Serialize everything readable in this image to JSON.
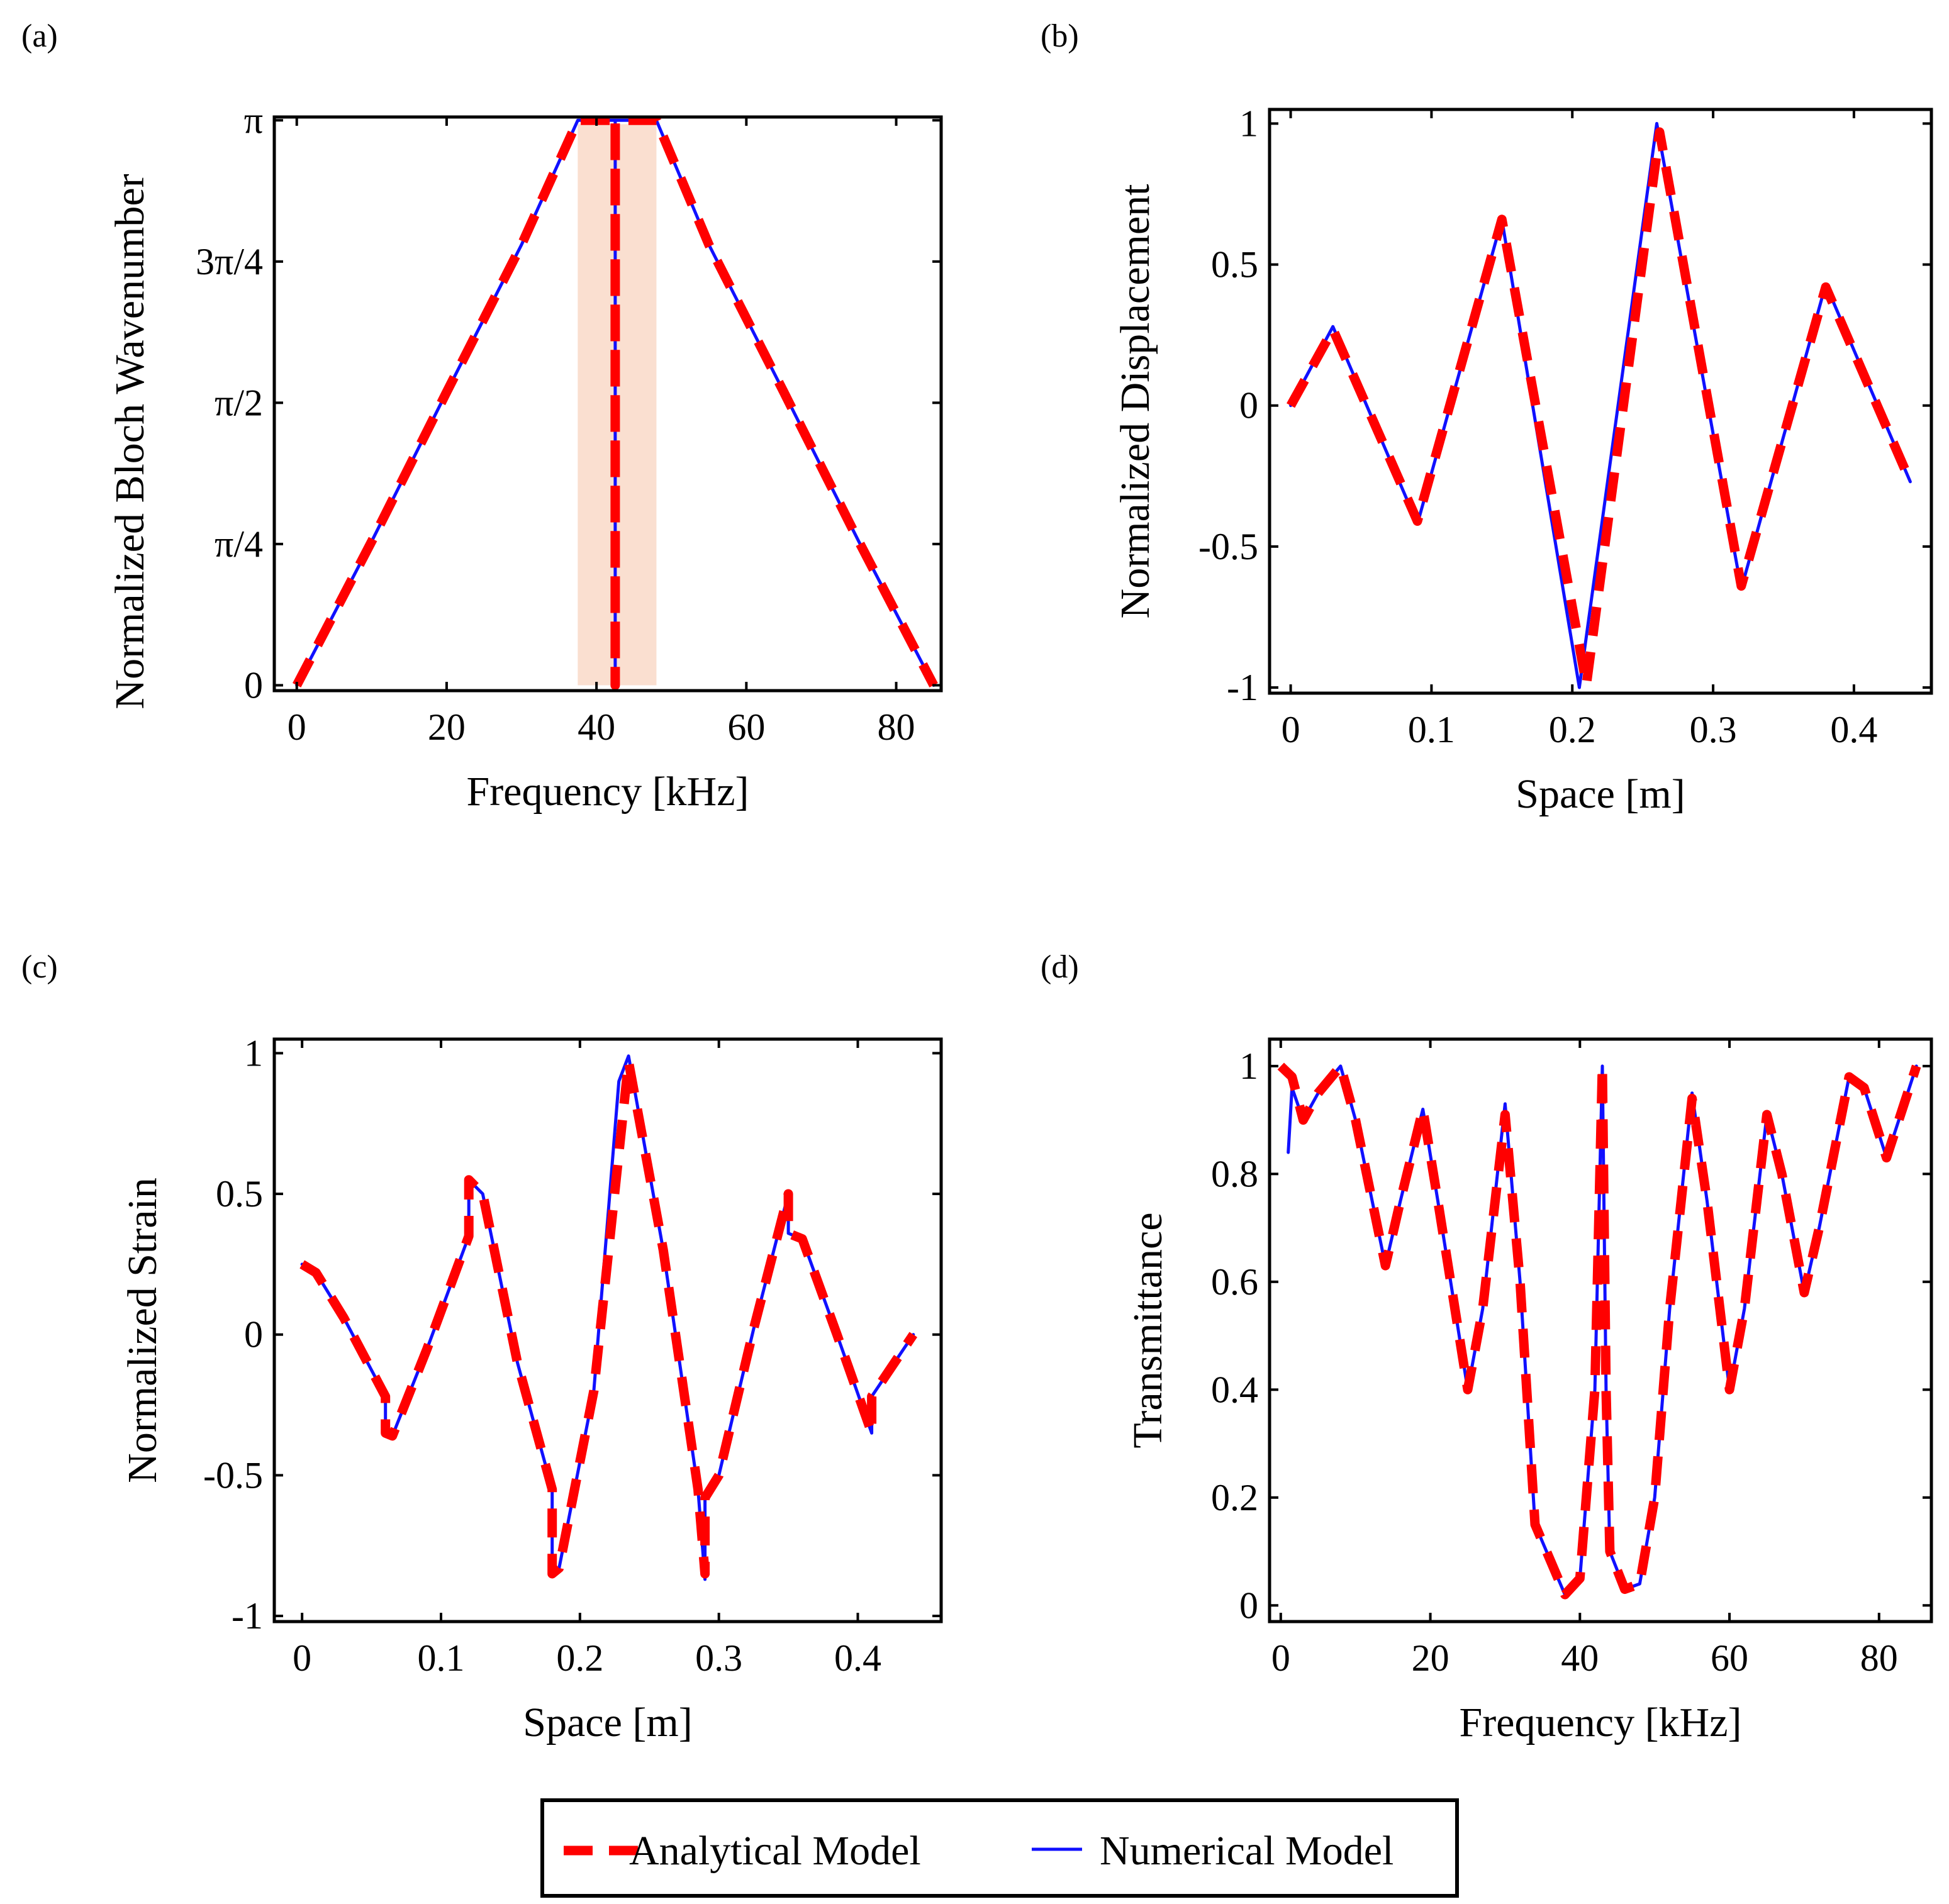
{
  "colors": {
    "analytical": "#ff0000",
    "numerical": "#1010ff",
    "bandgap": "#fadfd0",
    "axes": "#000000"
  },
  "legend": {
    "analytical_label": "Analytical Model",
    "numerical_label": "Numerical Model"
  },
  "chart_data": [
    {
      "id": "a",
      "panel_label": "(a)",
      "type": "line",
      "xlabel": "Frequency [kHz]",
      "ylabel": "Normalized Bloch Wavenumber",
      "xlim": [
        -3,
        86
      ],
      "ylim": [
        -0.03,
        3.16
      ],
      "xticks": [
        0,
        20,
        40,
        60,
        80
      ],
      "xtick_labels": [
        "0",
        "20",
        "40",
        "60",
        "80"
      ],
      "yticks": [
        0,
        0.7854,
        1.5708,
        2.3562,
        3.1416
      ],
      "ytick_labels": [
        "0",
        "π/4",
        "π/2",
        "3π/4",
        "π"
      ],
      "band_gap": {
        "x_start": 37.5,
        "x_end": 48
      },
      "series": [
        {
          "name": "Analytical Model",
          "style": "analytical",
          "x": [
            0,
            10,
            20,
            30,
            37.5,
            42.5,
            42.5,
            42.5,
            48,
            55,
            65,
            75,
            85
          ],
          "y": [
            0,
            0.8,
            1.63,
            2.45,
            3.1416,
            3.1416,
            0,
            3.1416,
            3.1416,
            2.45,
            1.63,
            0.8,
            0
          ]
        },
        {
          "name": "Numerical Model",
          "style": "numerical",
          "x": [
            0,
            10,
            20,
            30,
            37.5,
            42.5,
            42.5,
            42.5,
            48,
            55,
            65,
            75,
            85
          ],
          "y": [
            0,
            0.8,
            1.63,
            2.45,
            3.1416,
            3.1416,
            0,
            3.1416,
            3.1416,
            2.45,
            1.63,
            0.8,
            0
          ]
        }
      ]
    },
    {
      "id": "b",
      "panel_label": "(b)",
      "type": "line",
      "xlabel": "Space [m]",
      "ylabel": "Normalized Displacement",
      "xlim": [
        -0.015,
        0.455
      ],
      "ylim": [
        -1.02,
        1.05
      ],
      "xticks": [
        0,
        0.1,
        0.2,
        0.3,
        0.4
      ],
      "xtick_labels": [
        "0",
        "0.1",
        "0.2",
        "0.3",
        "0.4"
      ],
      "yticks": [
        -1,
        -0.5,
        0,
        0.5,
        1
      ],
      "ytick_labels": [
        "-1",
        "-0.5",
        "0",
        "0.5",
        "1"
      ],
      "series": [
        {
          "name": "Analytical Model",
          "style": "analytical",
          "x": [
            0,
            0.03,
            0.09,
            0.15,
            0.21,
            0.262,
            0.32,
            0.38,
            0.44
          ],
          "y": [
            0,
            0.27,
            -0.41,
            0.66,
            -0.99,
            0.97,
            -0.64,
            0.42,
            -0.27
          ]
        },
        {
          "name": "Numerical Model",
          "style": "numerical",
          "x": [
            0,
            0.03,
            0.09,
            0.15,
            0.205,
            0.26,
            0.32,
            0.38,
            0.44
          ],
          "y": [
            0,
            0.28,
            -0.42,
            0.66,
            -1.0,
            1.0,
            -0.65,
            0.43,
            -0.27
          ]
        }
      ]
    },
    {
      "id": "c",
      "panel_label": "(c)",
      "type": "line",
      "xlabel": "Space [m]",
      "ylabel": "Normalized Strain",
      "xlim": [
        -0.02,
        0.46
      ],
      "ylim": [
        -1.02,
        1.05
      ],
      "xticks": [
        0,
        0.1,
        0.2,
        0.3,
        0.4
      ],
      "xtick_labels": [
        "0",
        "0.1",
        "0.2",
        "0.3",
        "0.4"
      ],
      "yticks": [
        -1,
        -0.5,
        0,
        0.5,
        1
      ],
      "ytick_labels": [
        "-1",
        "-0.5",
        "0",
        "0.5",
        "1"
      ],
      "series": [
        {
          "name": "Analytical Model",
          "style": "analytical",
          "x": [
            0,
            0.01,
            0.03,
            0.06,
            0.06,
            0.065,
            0.09,
            0.12,
            0.12,
            0.13,
            0.155,
            0.18,
            0.18,
            0.185,
            0.21,
            0.235,
            0.26,
            0.285,
            0.29,
            0.29,
            0.3,
            0.325,
            0.35,
            0.35,
            0.36,
            0.385,
            0.41,
            0.41,
            0.44
          ],
          "y": [
            0.25,
            0.22,
            0.06,
            -0.22,
            -0.35,
            -0.36,
            -0.05,
            0.35,
            0.55,
            0.5,
            -0.1,
            -0.55,
            -0.85,
            -0.83,
            -0.2,
            0.97,
            0.3,
            -0.55,
            -0.85,
            -0.58,
            -0.5,
            0.02,
            0.5,
            0.36,
            0.34,
            0.0,
            -0.35,
            -0.22,
            0.0
          ]
        },
        {
          "name": "Numerical Model",
          "style": "numerical",
          "x": [
            0,
            0.01,
            0.03,
            0.06,
            0.06,
            0.065,
            0.09,
            0.12,
            0.12,
            0.13,
            0.155,
            0.18,
            0.18,
            0.185,
            0.21,
            0.228,
            0.235,
            0.26,
            0.285,
            0.29,
            0.29,
            0.3,
            0.325,
            0.35,
            0.35,
            0.36,
            0.385,
            0.41,
            0.41,
            0.44
          ],
          "y": [
            0.25,
            0.22,
            0.06,
            -0.22,
            -0.35,
            -0.36,
            -0.05,
            0.35,
            0.55,
            0.5,
            -0.1,
            -0.55,
            -0.85,
            -0.83,
            -0.2,
            0.9,
            0.99,
            0.3,
            -0.55,
            -0.87,
            -0.58,
            -0.5,
            0.02,
            0.5,
            0.36,
            0.34,
            0.0,
            -0.35,
            -0.22,
            0.0
          ]
        }
      ]
    },
    {
      "id": "d",
      "panel_label": "(d)",
      "type": "line",
      "xlabel": "Frequency [kHz]",
      "ylabel": "Transmittance",
      "xlim": [
        -1.5,
        87
      ],
      "ylim": [
        -0.03,
        1.05
      ],
      "xticks": [
        0,
        20,
        40,
        60,
        80
      ],
      "xtick_labels": [
        "0",
        "20",
        "40",
        "60",
        "80"
      ],
      "yticks": [
        0,
        0.2,
        0.4,
        0.6,
        0.8,
        1
      ],
      "ytick_labels": [
        "0",
        "0.2",
        "0.4",
        "0.6",
        "0.8",
        "1"
      ],
      "series": [
        {
          "name": "Analytical Model",
          "style": "analytical",
          "x": [
            0,
            1.5,
            3,
            5,
            8,
            10,
            14,
            16,
            19,
            21,
            25,
            27,
            30,
            32,
            34,
            38,
            40,
            42,
            43,
            43.5,
            44,
            46,
            48,
            50,
            52,
            55,
            57,
            60,
            62,
            65,
            67,
            70,
            72,
            76,
            78,
            81,
            85
          ],
          "y": [
            1.0,
            0.98,
            0.9,
            0.95,
            1.0,
            0.9,
            0.63,
            0.75,
            0.92,
            0.75,
            0.4,
            0.55,
            0.91,
            0.6,
            0.15,
            0.02,
            0.05,
            0.4,
            1.0,
            0.4,
            0.1,
            0.03,
            0.04,
            0.2,
            0.55,
            0.94,
            0.75,
            0.4,
            0.55,
            0.91,
            0.8,
            0.58,
            0.7,
            0.98,
            0.96,
            0.83,
            1.0
          ]
        },
        {
          "name": "Numerical Model",
          "style": "numerical",
          "x": [
            1,
            1.5,
            3,
            5,
            8,
            10,
            14,
            16,
            19,
            21,
            25,
            27,
            30,
            32,
            34,
            38,
            40,
            42,
            43,
            43.5,
            44,
            46,
            48,
            50,
            52,
            55,
            57,
            60,
            62,
            65,
            67,
            70,
            72,
            76,
            78,
            81,
            85
          ],
          "y": [
            0.84,
            0.96,
            0.9,
            0.95,
            1.0,
            0.9,
            0.63,
            0.75,
            0.92,
            0.75,
            0.4,
            0.55,
            0.93,
            0.6,
            0.15,
            0.02,
            0.05,
            0.4,
            1.0,
            0.4,
            0.1,
            0.03,
            0.04,
            0.2,
            0.55,
            0.95,
            0.75,
            0.4,
            0.55,
            0.91,
            0.8,
            0.58,
            0.7,
            0.98,
            0.96,
            0.83,
            1.0
          ]
        }
      ]
    }
  ]
}
